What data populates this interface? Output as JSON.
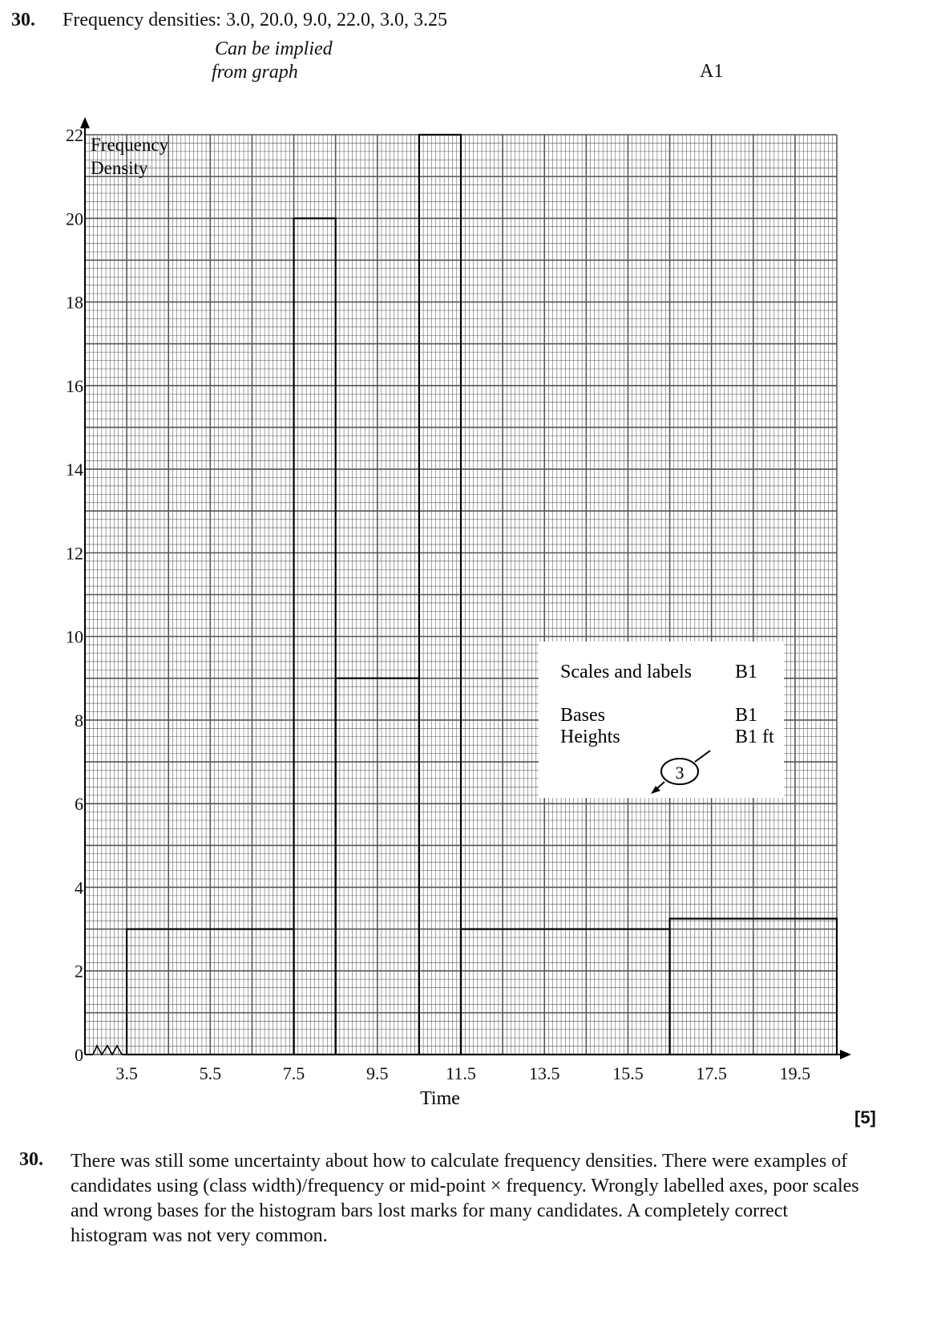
{
  "header": {
    "question_number": "30.",
    "statement": "Frequency densities: 3.0, 20.0, 9.0, 22.0, 3.0, 3.25",
    "note_line1": "Can be implied",
    "note_line2": "from graph",
    "mark": "A1"
  },
  "chart_data": {
    "type": "bar",
    "subtype": "histogram",
    "xlabel": "Time",
    "ylabel_line1": "Frequency",
    "ylabel_line2": "Density",
    "x_ticks": [
      "3.5",
      "5.5",
      "7.5",
      "9.5",
      "11.5",
      "13.5",
      "15.5",
      "17.5",
      "19.5"
    ],
    "y_ticks": [
      "0",
      "2",
      "4",
      "6",
      "8",
      "10",
      "12",
      "14",
      "16",
      "18",
      "20",
      "22"
    ],
    "xlim": [
      2.5,
      20.5
    ],
    "ylim": [
      0,
      22
    ],
    "x_axis_break": true,
    "bins": [
      {
        "start": 3.5,
        "end": 7.5,
        "density": 3.0
      },
      {
        "start": 7.5,
        "end": 8.5,
        "density": 20.0
      },
      {
        "start": 8.5,
        "end": 10.5,
        "density": 9.0
      },
      {
        "start": 10.5,
        "end": 11.5,
        "density": 22.0
      },
      {
        "start": 11.5,
        "end": 16.5,
        "density": 3.0
      },
      {
        "start": 16.5,
        "end": 20.5,
        "density": 3.25
      }
    ],
    "grid": true,
    "grid_color": "#555555"
  },
  "scheme": {
    "rows": [
      {
        "label": "Scales and labels",
        "mark": "B1"
      },
      {
        "label": "Bases",
        "mark": "B1"
      },
      {
        "label": "Heights",
        "mark": "B1 ft"
      }
    ],
    "circled_total": "3"
  },
  "total_marks": "[5]",
  "report": {
    "question_number": "30.",
    "text": "There was still some uncertainty about how to calculate frequency densities. There were examples of candidates using (class width)/frequency or mid-point × frequency. Wrongly labelled axes, poor scales and wrong bases for the histogram bars lost marks for many candidates. A completely correct histogram was not very common."
  }
}
